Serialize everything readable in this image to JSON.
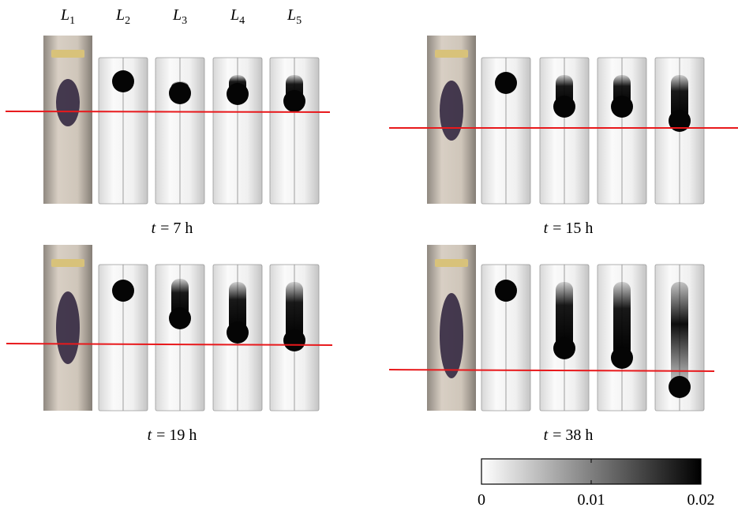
{
  "column_labels": [
    {
      "symbol": "L",
      "subscript": "1"
    },
    {
      "symbol": "L",
      "subscript": "2"
    },
    {
      "symbol": "L",
      "subscript": "3"
    },
    {
      "symbol": "L",
      "subscript": "4"
    },
    {
      "symbol": "L",
      "subscript": "5"
    }
  ],
  "panels": [
    {
      "caption": {
        "symbol": "t",
        "text": "= 7 h"
      }
    },
    {
      "caption": {
        "symbol": "t",
        "text": "= 15 h"
      }
    },
    {
      "caption": {
        "symbol": "t",
        "text": "= 19 h"
      }
    },
    {
      "caption": {
        "symbol": "t",
        "text": "= 38 h"
      }
    }
  ],
  "colorbar": {
    "lim": [
      0,
      0.02
    ],
    "ticks": [
      0,
      0.01,
      0.02
    ]
  }
}
